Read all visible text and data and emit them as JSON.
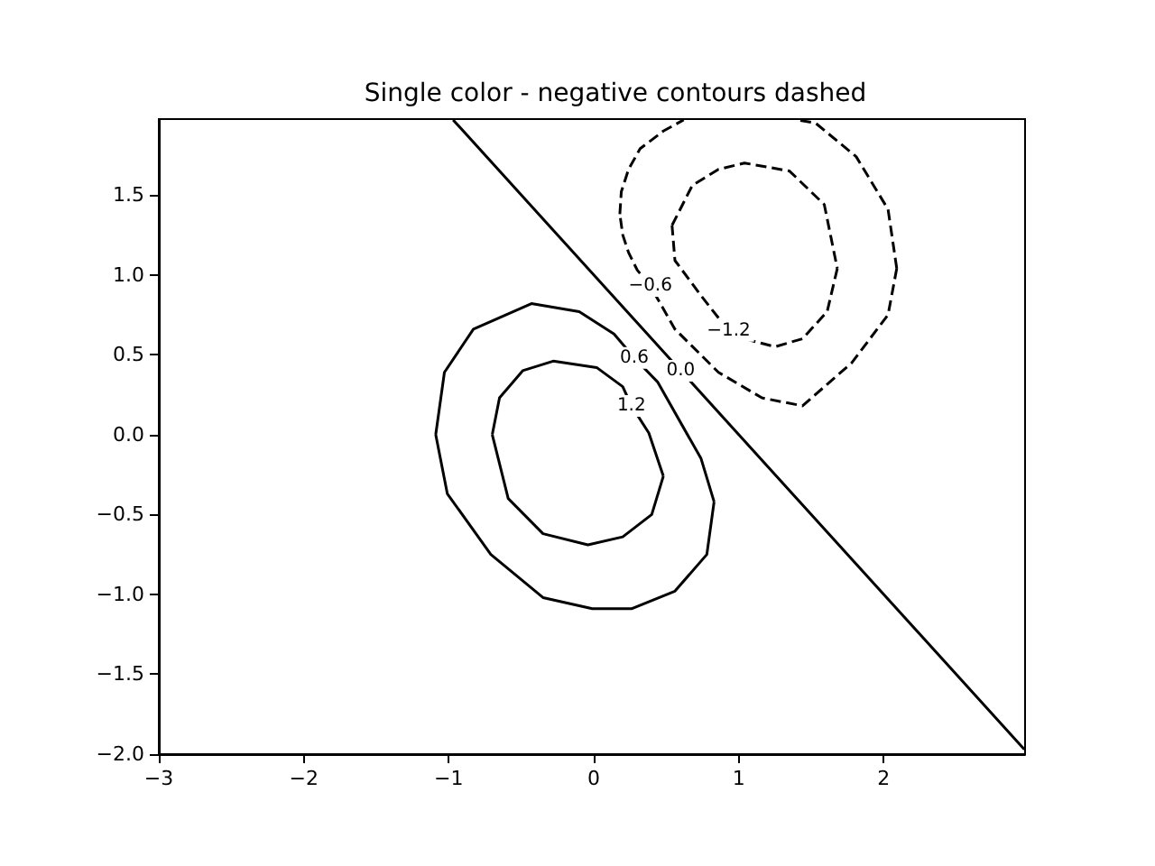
{
  "chart_data": {
    "type": "line",
    "title": "Single color - negative contours dashed",
    "xlim": [
      -3,
      2.975
    ],
    "ylim": [
      -2,
      1.975
    ],
    "xticks": [
      {
        "value": -3,
        "label": "−3"
      },
      {
        "value": -2,
        "label": "−2"
      },
      {
        "value": -1,
        "label": "−1"
      },
      0,
      1,
      2
    ],
    "yticks": [
      {
        "value": -2,
        "label": "−2.0"
      },
      {
        "value": -1.5,
        "label": "−1.5"
      },
      {
        "value": -1,
        "label": "−1.0"
      },
      {
        "value": -0.5,
        "label": "−0.5"
      },
      {
        "value": 0,
        "label": "0.0"
      },
      {
        "value": 0.5,
        "label": "0.5"
      },
      {
        "value": 1,
        "label": "1.0"
      },
      {
        "value": 1.5,
        "label": "1.5"
      }
    ],
    "marker": "none",
    "series": [
      {
        "name": "0.6",
        "color": "#000000",
        "line_style": "solid",
        "x": [
          -1.09,
          -1.01,
          -0.71,
          -0.35,
          -0.01,
          0.26,
          0.56,
          0.78,
          0.83,
          null,
          0.83,
          0.74,
          0.44,
          0.28,
          null,
          -1.09,
          -1.03,
          -0.83,
          -0.43,
          -0.1,
          0.14,
          0.28
        ],
        "values": [
          0,
          -0.37,
          -0.75,
          -1.02,
          -1.09,
          -1.09,
          -0.98,
          -0.75,
          -0.42,
          null,
          -0.42,
          -0.15,
          0.33,
          0.48,
          null,
          0,
          0.39,
          0.66,
          0.82,
          0.77,
          0.63,
          0.48
        ]
      },
      {
        "name": "1.2",
        "color": "#000000",
        "line_style": "solid",
        "x": [
          -0.7,
          -0.59,
          -0.35,
          -0.04,
          0.2,
          0.4,
          0.48,
          null,
          0.48,
          0.38,
          0.26,
          null,
          -0.7,
          -0.65,
          -0.49,
          -0.28,
          0.02,
          0.2,
          0.26
        ],
        "values": [
          0,
          -0.4,
          -0.62,
          -0.69,
          -0.64,
          -0.5,
          -0.26,
          null,
          -0.26,
          0.01,
          0.18,
          null,
          0,
          0.23,
          0.4,
          0.46,
          0.42,
          0.3,
          0.18
        ]
      },
      {
        "name": "0.0",
        "color": "#000000",
        "line_style": "solid",
        "x": [
          2.97,
          0.6,
          null,
          -0.97,
          0.6
        ],
        "values": [
          -1.97,
          0.4,
          null,
          1.97,
          0.4
        ]
      },
      {
        "name": "−0.6",
        "color": "#000000",
        "line_style": "dashed",
        "x": [
          0.39,
          0.3,
          0.24,
          0.2,
          0.18,
          null,
          0.18,
          0.19,
          0.24,
          0.32,
          0.48,
          0.62,
          null,
          2.09,
          2.03,
          1.81,
          1.53,
          1.4,
          null,
          2.09,
          2.03,
          1.78,
          1.44,
          1.16,
          0.86,
          0.56,
          0.39
        ],
        "values": [
          0.93,
          1.03,
          1.14,
          1.25,
          1.38,
          null,
          1.38,
          1.52,
          1.66,
          1.79,
          1.9,
          1.97,
          null,
          1.04,
          1.41,
          1.74,
          1.95,
          1.97,
          null,
          1.04,
          0.75,
          0.45,
          0.18,
          0.23,
          0.39,
          0.66,
          0.93
        ]
      },
      {
        "name": "−1.2",
        "color": "#000000",
        "line_style": "dashed",
        "x": [
          0.93,
          0.74,
          0.56,
          0.54,
          null,
          0.54,
          0.68,
          0.86,
          1.04,
          1.35,
          1.59,
          1.68,
          null,
          1.68,
          1.61,
          1.44,
          1.25,
          1.04,
          0.93
        ],
        "values": [
          0.65,
          0.87,
          1.09,
          1.31,
          null,
          1.31,
          1.56,
          1.66,
          1.7,
          1.65,
          1.44,
          1.04,
          null,
          1.04,
          0.77,
          0.6,
          0.55,
          0.6,
          0.65
        ]
      }
    ]
  }
}
